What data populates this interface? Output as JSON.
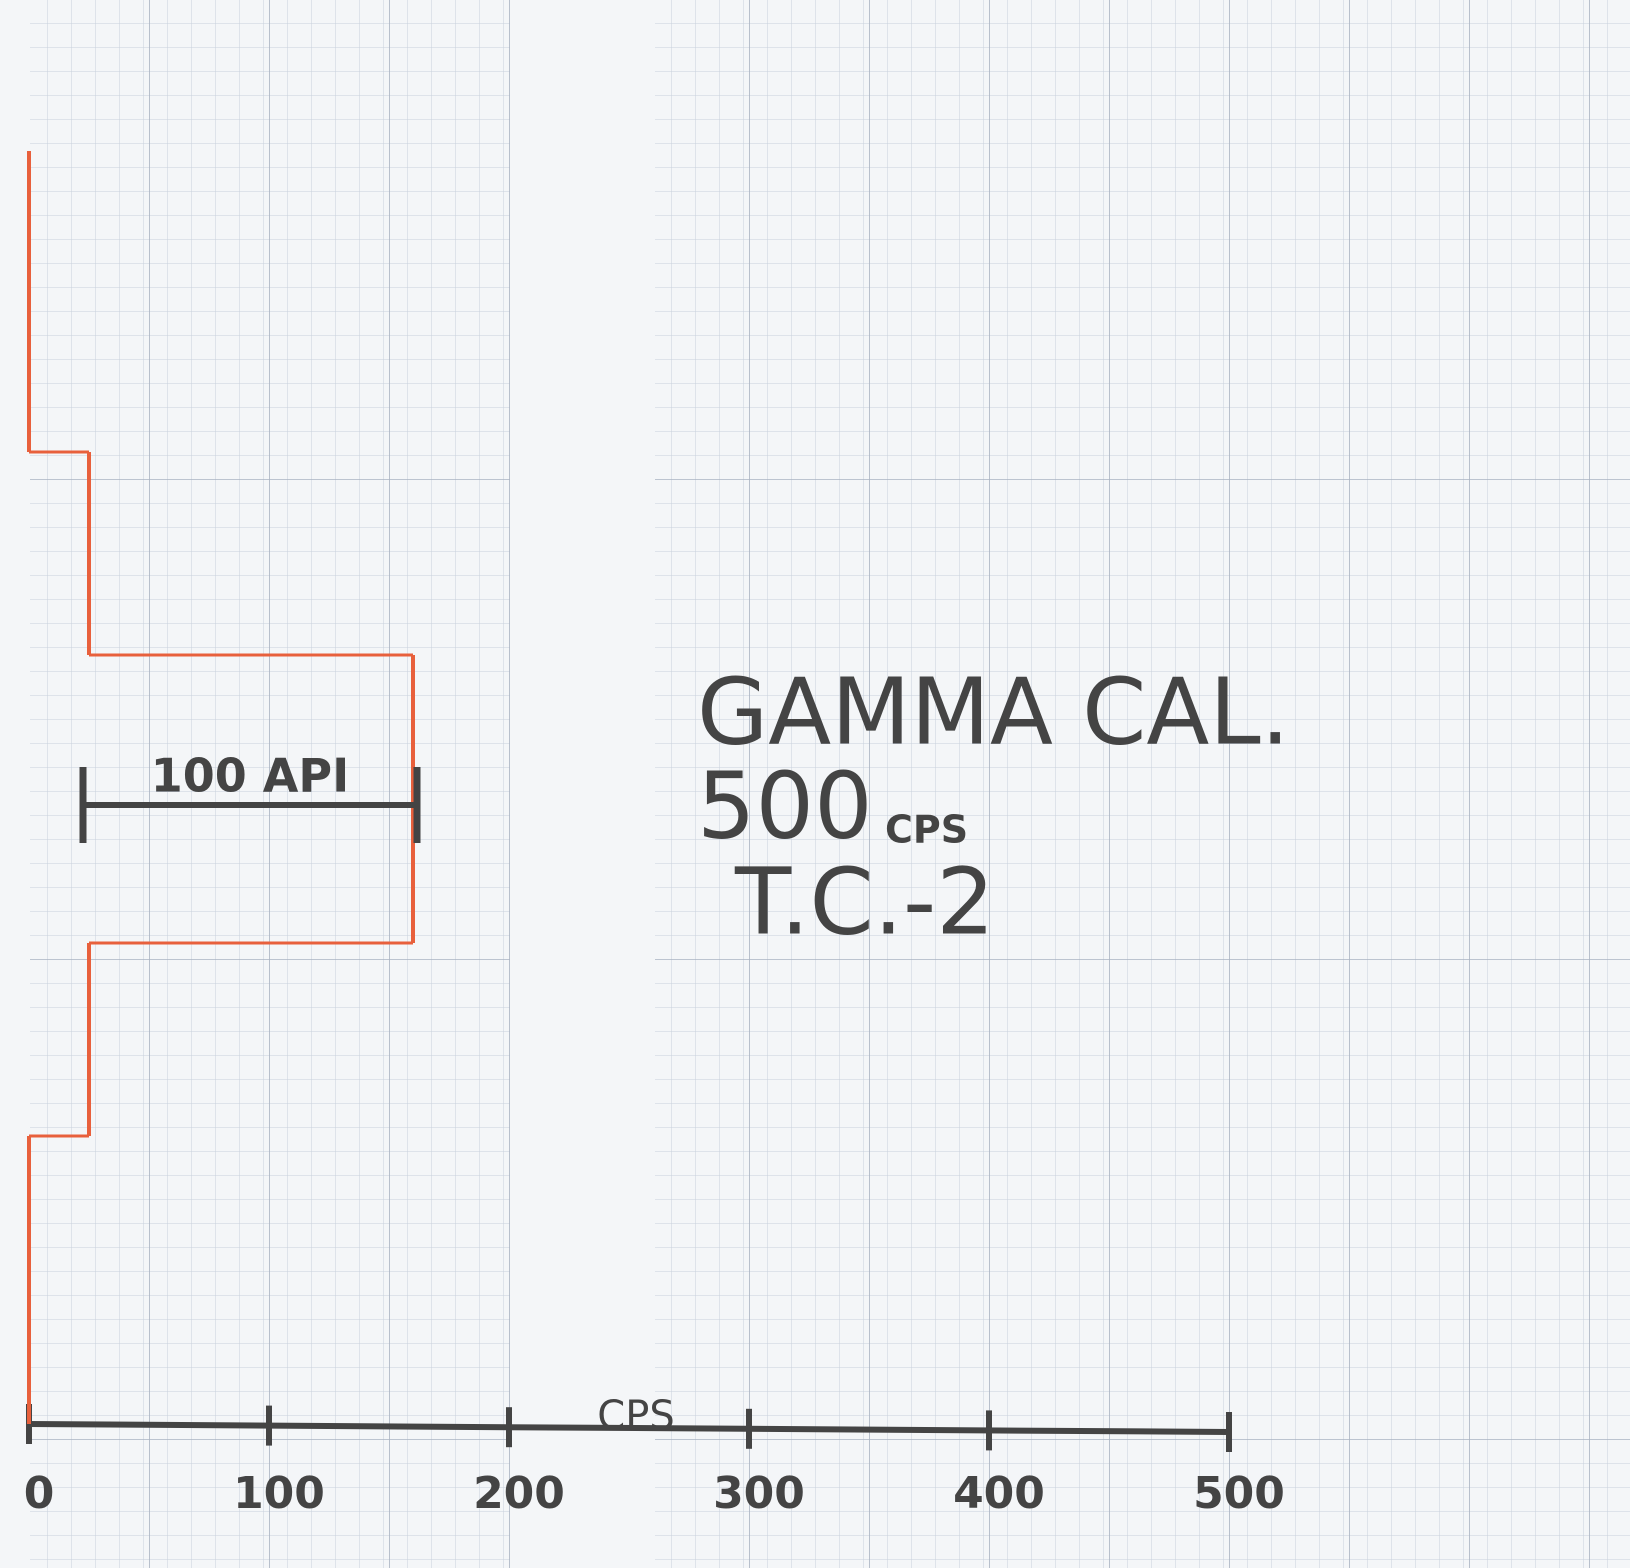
{
  "chart_data": {
    "type": "step",
    "xlabel": "CPS",
    "categories": [
      null,
      null,
      null,
      null,
      null
    ],
    "series": [
      {
        "name": null,
        "color": "#e8603c",
        "values": [
          0,
          25,
          160,
          25,
          0
        ]
      }
    ],
    "xlim": [
      0,
      500
    ],
    "xticks": [
      0,
      100,
      200,
      300,
      400,
      500
    ],
    "annotations": [
      "100 API",
      "GAMMA CAL.",
      "500",
      "CPS",
      "T.C.-2"
    ]
  }
}
